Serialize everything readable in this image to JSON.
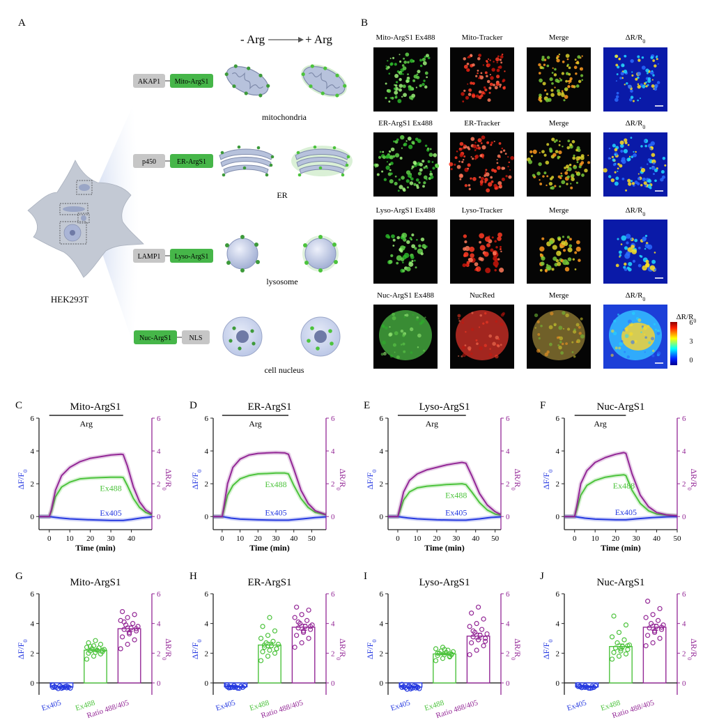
{
  "panel_letters": {
    "A": "A",
    "B": "B",
    "C": "C",
    "D": "D",
    "E": "E",
    "F": "F",
    "G": "G",
    "H": "H",
    "I": "I",
    "J": "J"
  },
  "panel_a": {
    "minus_arg": "- Arg",
    "plus_arg": "+ Arg",
    "cell_label": "HEK293T",
    "rows": [
      {
        "anchor": "AKAP1",
        "sensor": "Mito-ArgS1",
        "organelle": "mitochondria",
        "order": "anchor-first"
      },
      {
        "anchor": "p450",
        "sensor": "ER-ArgS1",
        "organelle": "ER",
        "order": "anchor-first"
      },
      {
        "anchor": "LAMP1",
        "sensor": "Lyso-ArgS1",
        "organelle": "lysosome",
        "order": "anchor-first"
      },
      {
        "anchor": "NLS",
        "sensor": "Nuc-ArgS1",
        "organelle": "cell nucleus",
        "order": "sensor-first"
      }
    ]
  },
  "panel_b": {
    "rows": [
      {
        "titles": [
          "Mito-ArgS1 Ex488",
          "Mito-Tracker",
          "Merge",
          "ΔR/R0"
        ]
      },
      {
        "titles": [
          "ER-ArgS1 Ex488",
          "ER-Tracker",
          "Merge",
          "ΔR/R0"
        ]
      },
      {
        "titles": [
          "Lyso-ArgS1 Ex488",
          "Lyso-Tracker",
          "Merge",
          "ΔR/R0"
        ]
      },
      {
        "titles": [
          "Nuc-ArgS1 Ex488",
          "NucRed",
          "Merge",
          "ΔR/R0"
        ]
      }
    ],
    "colorbar": {
      "title": "ΔR/R0",
      "ticks": [
        "6",
        "3",
        "0"
      ]
    }
  },
  "colors": {
    "ex405": "#2438e0",
    "ex488": "#4cc33c",
    "ratio": "#932796",
    "grey_box": "#c6c6c6",
    "green_box": "#46b649"
  },
  "chart_data": [
    {
      "panel": "C",
      "type": "line",
      "title": "Mito-ArgS1",
      "stim_label": "Arg",
      "xlabel": "Time (min)",
      "ylabel_left": "ΔF/F0",
      "ylabel_right": "ΔR/R0",
      "xlim": [
        -5,
        50
      ],
      "ylim": [
        -0.8,
        6
      ],
      "stim": [
        0,
        36
      ],
      "xticks": [
        "0",
        "10",
        "20",
        "30",
        "40"
      ],
      "yticks": [
        "0",
        "2",
        "4",
        "6"
      ],
      "yticks_right": [
        "0",
        "2",
        "4",
        "6"
      ],
      "series": [
        {
          "name": "Ex488",
          "x": [
            -5,
            0,
            1,
            3,
            6,
            10,
            15,
            20,
            25,
            30,
            35,
            36,
            38,
            41,
            44,
            47,
            50
          ],
          "y": [
            0,
            0,
            0.3,
            1.2,
            1.8,
            2.1,
            2.3,
            2.35,
            2.38,
            2.4,
            2.4,
            2.38,
            1.9,
            1.1,
            0.55,
            0.25,
            0.1
          ]
        },
        {
          "name": "Ex405",
          "x": [
            -5,
            0,
            5,
            10,
            20,
            30,
            36,
            40,
            45,
            50
          ],
          "y": [
            0,
            0,
            -0.08,
            -0.14,
            -0.2,
            -0.24,
            -0.24,
            -0.18,
            -0.08,
            -0.02
          ]
        },
        {
          "name": "ratio",
          "x": [
            -5,
            0,
            1,
            3,
            6,
            10,
            15,
            20,
            25,
            30,
            35,
            36,
            38,
            41,
            44,
            47,
            50
          ],
          "y": [
            0,
            0,
            0.4,
            1.6,
            2.5,
            3.0,
            3.35,
            3.55,
            3.65,
            3.75,
            3.8,
            3.78,
            3.1,
            1.8,
            0.9,
            0.4,
            0.15
          ]
        }
      ]
    },
    {
      "panel": "D",
      "type": "line",
      "title": "ER-ArgS1",
      "stim_label": "Arg",
      "xlabel": "Time (min)",
      "ylabel_left": "ΔF/F0",
      "ylabel_right": "ΔR/R0",
      "xlim": [
        -5,
        58
      ],
      "ylim": [
        -0.8,
        6
      ],
      "stim": [
        0,
        37
      ],
      "xticks": [
        "0",
        "10",
        "20",
        "30",
        "40",
        "50"
      ],
      "yticks": [
        "0",
        "2",
        "4",
        "6"
      ],
      "yticks_right": [
        "0",
        "2",
        "4",
        "6"
      ],
      "series": [
        {
          "name": "Ex488",
          "x": [
            -5,
            0,
            1,
            3,
            6,
            10,
            15,
            20,
            25,
            30,
            35,
            37,
            40,
            44,
            48,
            52,
            58
          ],
          "y": [
            0,
            0,
            0.4,
            1.3,
            1.9,
            2.3,
            2.5,
            2.6,
            2.62,
            2.65,
            2.65,
            2.6,
            1.9,
            1.1,
            0.55,
            0.25,
            0.1
          ]
        },
        {
          "name": "Ex405",
          "x": [
            -5,
            0,
            5,
            10,
            20,
            30,
            37,
            45,
            52,
            58
          ],
          "y": [
            0,
            0,
            -0.1,
            -0.16,
            -0.2,
            -0.22,
            -0.22,
            -0.14,
            -0.06,
            -0.02
          ]
        },
        {
          "name": "ratio",
          "x": [
            -5,
            0,
            1,
            3,
            6,
            10,
            15,
            20,
            25,
            30,
            35,
            37,
            40,
            44,
            48,
            52,
            58
          ],
          "y": [
            0,
            0,
            0.6,
            2.0,
            3.0,
            3.5,
            3.75,
            3.85,
            3.88,
            3.9,
            3.88,
            3.8,
            2.9,
            1.6,
            0.8,
            0.35,
            0.12
          ]
        }
      ]
    },
    {
      "panel": "E",
      "type": "line",
      "title": "Lyso-ArgS1",
      "stim_label": "Arg",
      "xlabel": "Time (min)",
      "ylabel_left": "ΔF/F0",
      "ylabel_right": "ΔR/R0",
      "xlim": [
        -5,
        53
      ],
      "ylim": [
        -0.8,
        6
      ],
      "stim": [
        0,
        35
      ],
      "xticks": [
        "0",
        "10",
        "20",
        "30",
        "40",
        "50"
      ],
      "yticks": [
        "0",
        "2",
        "4",
        "6"
      ],
      "yticks_right": [
        "0",
        "2",
        "4",
        "6"
      ],
      "series": [
        {
          "name": "Ex488",
          "x": [
            -5,
            0,
            1,
            3,
            6,
            10,
            15,
            20,
            25,
            30,
            33,
            35,
            38,
            42,
            46,
            50,
            53
          ],
          "y": [
            0,
            0,
            0.3,
            1.0,
            1.5,
            1.75,
            1.85,
            1.9,
            1.95,
            1.98,
            2.0,
            1.95,
            1.5,
            0.85,
            0.4,
            0.15,
            0.08
          ]
        },
        {
          "name": "Ex405",
          "x": [
            -5,
            0,
            5,
            10,
            20,
            30,
            35,
            42,
            48,
            53
          ],
          "y": [
            0,
            0,
            -0.08,
            -0.14,
            -0.2,
            -0.22,
            -0.22,
            -0.14,
            -0.05,
            -0.02
          ]
        },
        {
          "name": "ratio",
          "x": [
            -5,
            0,
            1,
            3,
            6,
            10,
            15,
            20,
            25,
            30,
            33,
            35,
            38,
            42,
            46,
            50,
            53
          ],
          "y": [
            0,
            0,
            0.5,
            1.5,
            2.2,
            2.6,
            2.85,
            3.0,
            3.15,
            3.25,
            3.3,
            3.25,
            2.5,
            1.4,
            0.7,
            0.3,
            0.12
          ]
        }
      ]
    },
    {
      "panel": "F",
      "type": "line",
      "title": "Nuc-ArgS1",
      "stim_label": "Arg",
      "xlabel": "Time (min)",
      "ylabel_left": "ΔF/F0",
      "ylabel_right": "ΔR/R0",
      "xlim": [
        -5,
        50
      ],
      "ylim": [
        -0.8,
        6
      ],
      "stim": [
        0,
        25
      ],
      "xticks": [
        "0",
        "10",
        "20",
        "30",
        "40",
        "50"
      ],
      "yticks": [
        "0",
        "2",
        "4",
        "6"
      ],
      "yticks_right": [
        "0",
        "2",
        "4",
        "6"
      ],
      "series": [
        {
          "name": "Ex488",
          "x": [
            -5,
            0,
            1,
            3,
            6,
            10,
            15,
            20,
            24,
            25,
            28,
            32,
            36,
            40,
            45,
            50
          ],
          "y": [
            0,
            0,
            0.4,
            1.3,
            1.9,
            2.2,
            2.4,
            2.5,
            2.55,
            2.5,
            1.6,
            0.8,
            0.35,
            0.15,
            0.08,
            0.05
          ]
        },
        {
          "name": "Ex405",
          "x": [
            -5,
            0,
            5,
            10,
            20,
            25,
            30,
            38,
            45,
            50
          ],
          "y": [
            0,
            0,
            -0.1,
            -0.16,
            -0.2,
            -0.2,
            -0.14,
            -0.06,
            -0.02,
            0
          ]
        },
        {
          "name": "ratio",
          "x": [
            -5,
            0,
            1,
            3,
            6,
            10,
            15,
            20,
            24,
            25,
            28,
            32,
            36,
            40,
            45,
            50
          ],
          "y": [
            0,
            0,
            0.6,
            2.0,
            2.8,
            3.3,
            3.6,
            3.8,
            3.9,
            3.85,
            2.6,
            1.3,
            0.6,
            0.25,
            0.1,
            0.05
          ]
        }
      ]
    },
    {
      "panel": "G",
      "type": "bar",
      "title": "Mito-ArgS1",
      "categories": [
        "Ex405",
        "Ex488",
        "Ratio 488/405"
      ],
      "ylabel_left": "ΔF/F0",
      "ylabel_right": "ΔR/R0",
      "ylim": [
        -0.8,
        6
      ],
      "yticks": [
        "0",
        "2",
        "4",
        "6"
      ],
      "yticks_right": [
        "0",
        "2",
        "4",
        "6"
      ],
      "values": [
        -0.28,
        2.2,
        3.65
      ],
      "errors": [
        0.03,
        0.08,
        0.18
      ],
      "points": [
        [
          -0.15,
          -0.2,
          -0.22,
          -0.25,
          -0.27,
          -0.28,
          -0.3,
          -0.32,
          -0.35,
          -0.38,
          -0.25,
          -0.3,
          -0.2,
          -0.33,
          -0.28,
          -0.36
        ],
        [
          1.6,
          1.8,
          1.95,
          2.0,
          2.05,
          2.1,
          2.15,
          2.2,
          2.25,
          2.3,
          2.35,
          2.4,
          2.5,
          2.6,
          2.7,
          2.85,
          2.2,
          2.45
        ],
        [
          2.3,
          2.6,
          2.9,
          3.1,
          3.3,
          3.5,
          3.6,
          3.7,
          3.8,
          3.9,
          4.0,
          4.2,
          4.4,
          4.6,
          4.8,
          3.4,
          3.65,
          4.1
        ]
      ]
    },
    {
      "panel": "H",
      "type": "bar",
      "title": "ER-ArgS1",
      "categories": [
        "Ex405",
        "Ex488",
        "Ratio 488/405"
      ],
      "ylabel_left": "ΔF/F0",
      "ylabel_right": "ΔR/R0",
      "ylim": [
        -0.8,
        6
      ],
      "yticks": [
        "0",
        "2",
        "4",
        "6"
      ],
      "yticks_right": [
        "0",
        "2",
        "4",
        "6"
      ],
      "values": [
        -0.26,
        2.55,
        3.75
      ],
      "errors": [
        0.03,
        0.18,
        0.2
      ],
      "points": [
        [
          -0.12,
          -0.18,
          -0.22,
          -0.25,
          -0.27,
          -0.3,
          -0.32,
          -0.35,
          -0.2,
          -0.28,
          -0.36,
          -0.24,
          -0.3,
          -0.22,
          -0.33
        ],
        [
          1.5,
          1.8,
          2.0,
          2.1,
          2.2,
          2.3,
          2.4,
          2.5,
          2.6,
          2.7,
          2.8,
          3.0,
          3.2,
          3.5,
          3.8,
          4.4,
          2.3,
          2.55
        ],
        [
          2.4,
          2.7,
          3.0,
          3.2,
          3.4,
          3.6,
          3.7,
          3.8,
          3.9,
          4.0,
          4.2,
          4.4,
          4.6,
          4.9,
          5.1,
          3.5,
          3.8,
          4.1
        ]
      ]
    },
    {
      "panel": "I",
      "type": "bar",
      "title": "Lyso-ArgS1",
      "categories": [
        "Ex405",
        "Ex488",
        "Ratio 488/405"
      ],
      "ylabel_left": "ΔF/F0",
      "ylabel_right": "ΔR/R0",
      "ylim": [
        -0.8,
        6
      ],
      "yticks": [
        "0",
        "2",
        "4",
        "6"
      ],
      "yticks_right": [
        "0",
        "2",
        "4",
        "6"
      ],
      "values": [
        -0.28,
        1.95,
        3.15
      ],
      "errors": [
        0.03,
        0.06,
        0.2
      ],
      "points": [
        [
          -0.1,
          -0.18,
          -0.22,
          -0.25,
          -0.28,
          -0.3,
          -0.32,
          -0.35,
          -0.38,
          -0.42,
          -0.2,
          -0.3,
          -0.26,
          -0.34,
          -0.24,
          -0.4,
          -0.28
        ],
        [
          1.5,
          1.65,
          1.75,
          1.85,
          1.9,
          1.95,
          2.0,
          2.05,
          2.1,
          2.15,
          2.2,
          2.3,
          2.4,
          1.8,
          2.0,
          2.25,
          1.9
        ],
        [
          1.9,
          2.2,
          2.5,
          2.7,
          2.9,
          3.0,
          3.1,
          3.2,
          3.3,
          3.4,
          3.6,
          3.8,
          4.0,
          4.3,
          4.7,
          5.1,
          2.8,
          3.5
        ]
      ]
    },
    {
      "panel": "J",
      "type": "bar",
      "title": "Nuc-ArgS1",
      "categories": [
        "Ex405",
        "Ex488",
        "Ratio 488/405"
      ],
      "ylabel_left": "ΔF/F0",
      "ylabel_right": "ΔR/R0",
      "ylim": [
        -0.8,
        6
      ],
      "yticks": [
        "0",
        "2",
        "4",
        "6"
      ],
      "yticks_right": [
        "0",
        "2",
        "4",
        "6"
      ],
      "values": [
        -0.27,
        2.45,
        3.75
      ],
      "errors": [
        0.03,
        0.17,
        0.2
      ],
      "points": [
        [
          -0.12,
          -0.18,
          -0.22,
          -0.25,
          -0.27,
          -0.3,
          -0.32,
          -0.35,
          -0.2,
          -0.28,
          -0.36,
          -0.24,
          -0.3,
          -0.33,
          -0.22
        ],
        [
          1.6,
          1.8,
          1.95,
          2.05,
          2.15,
          2.25,
          2.35,
          2.45,
          2.55,
          2.7,
          2.9,
          3.1,
          3.4,
          3.9,
          4.5,
          2.3,
          2.5
        ],
        [
          2.5,
          2.7,
          3.0,
          3.2,
          3.4,
          3.6,
          3.7,
          3.8,
          3.9,
          4.0,
          4.2,
          4.4,
          4.6,
          5.0,
          5.5,
          3.5,
          3.75
        ]
      ]
    }
  ]
}
